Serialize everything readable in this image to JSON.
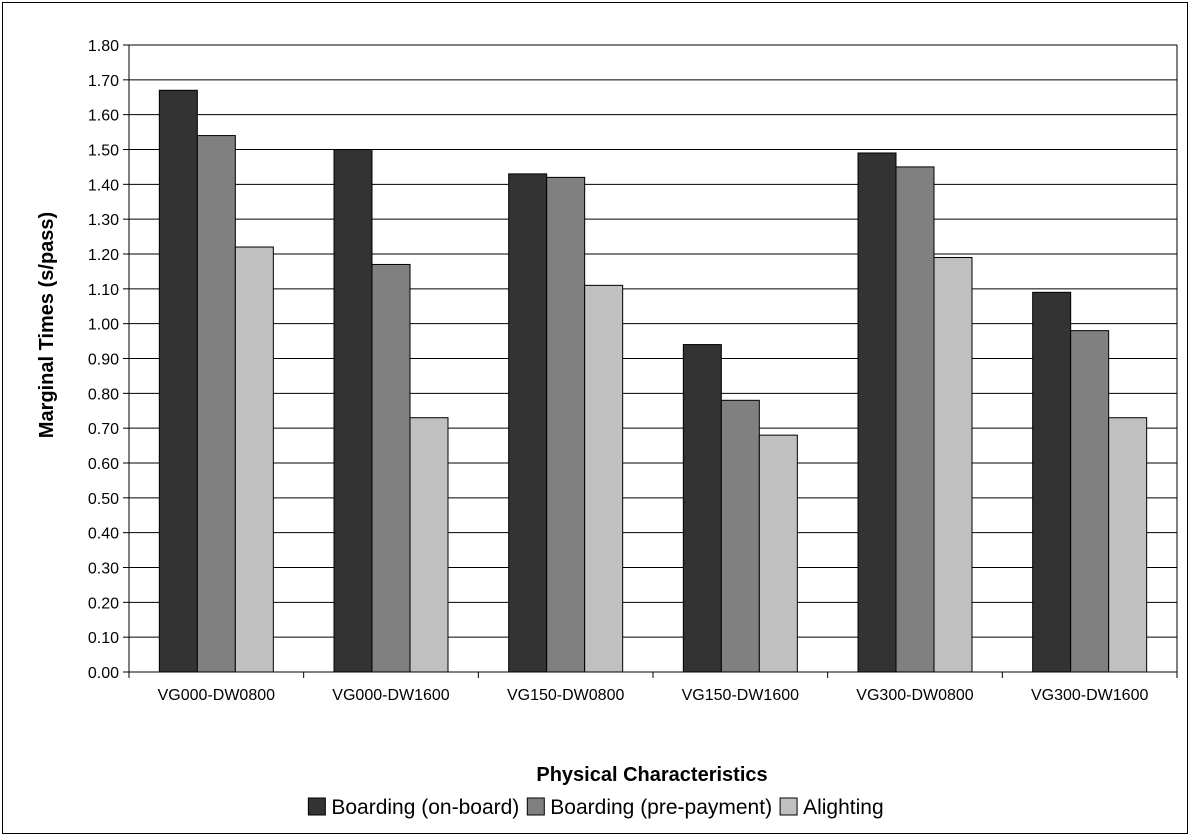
{
  "chart_data": {
    "type": "bar",
    "title": "",
    "xlabel": "Physical Characteristics",
    "ylabel": "Marginal Times (s/pass)",
    "ylim": [
      0,
      1.8
    ],
    "ytick_step": 0.1,
    "ytick_labels": [
      "0.00",
      "0.10",
      "0.20",
      "0.30",
      "0.40",
      "0.50",
      "0.60",
      "0.70",
      "0.80",
      "0.90",
      "1.00",
      "1.10",
      "1.20",
      "1.30",
      "1.40",
      "1.50",
      "1.60",
      "1.70",
      "1.80"
    ],
    "grid": "horizontal",
    "legend_position": "bottom",
    "categories": [
      "VG000-DW0800",
      "VG000-DW1600",
      "VG150-DW0800",
      "VG150-DW1600",
      "VG300-DW0800",
      "VG300-DW1600"
    ],
    "series": [
      {
        "name": "Boarding (on-board)",
        "color": "#333333",
        "values": [
          1.67,
          1.5,
          1.43,
          0.94,
          1.49,
          1.09
        ]
      },
      {
        "name": "Boarding (pre-payment)",
        "color": "#808080",
        "values": [
          1.54,
          1.17,
          1.42,
          0.78,
          1.45,
          0.98
        ]
      },
      {
        "name": "Alighting",
        "color": "#c0c0c0",
        "values": [
          1.22,
          0.73,
          1.11,
          0.68,
          1.19,
          0.73
        ]
      }
    ]
  }
}
